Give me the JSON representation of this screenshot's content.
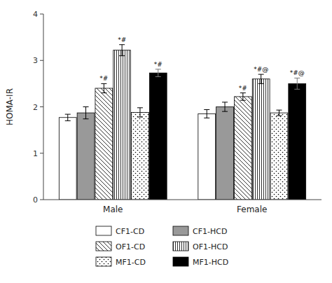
{
  "chart_data": {
    "type": "bar",
    "categories": [
      "Male",
      "Female"
    ],
    "ylabel": "HOMA-IR",
    "ylim": [
      0,
      4
    ],
    "yticks": [
      0,
      1,
      2,
      3,
      4
    ],
    "legend": "bottom",
    "series": [
      {
        "name": "CF1-CD",
        "color": "white",
        "values": [
          1.77,
          1.85
        ],
        "errors": [
          0.07,
          0.09
        ]
      },
      {
        "name": "CF1-HCD",
        "color": "#999999",
        "values": [
          1.87,
          2.0
        ],
        "errors": [
          0.13,
          0.1
        ]
      },
      {
        "name": "OF1-CD",
        "color": "white",
        "values": [
          2.4,
          2.22
        ],
        "errors": [
          0.1,
          0.08
        ],
        "annotations": [
          "*#",
          "*#"
        ]
      },
      {
        "name": "OF1-HCD",
        "color": "white",
        "values": [
          3.22,
          2.6
        ],
        "errors": [
          0.12,
          0.1
        ],
        "annotations": [
          "*#",
          "*#@"
        ]
      },
      {
        "name": "MF1-CD",
        "color": "white",
        "values": [
          1.88,
          1.87
        ],
        "errors": [
          0.1,
          0.06
        ]
      },
      {
        "name": "MF1-HCD",
        "color": "black",
        "values": [
          2.73,
          2.5
        ],
        "errors": [
          0.08,
          0.12
        ],
        "annotations": [
          "*#",
          "*#@"
        ]
      }
    ]
  }
}
